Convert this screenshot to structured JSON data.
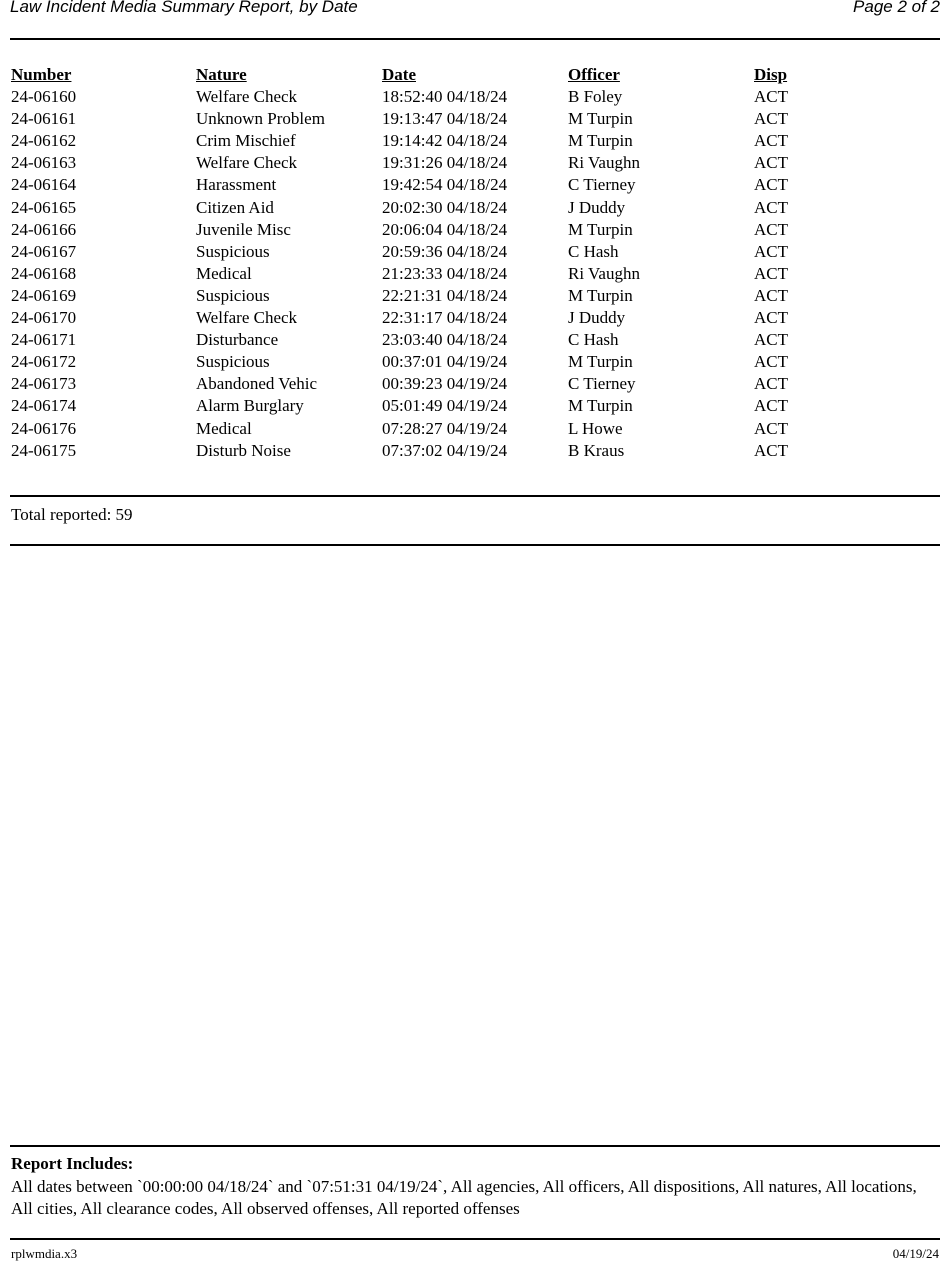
{
  "header": {
    "title": "Law Incident Media Summary Report, by Date",
    "page": "Page 2 of 2"
  },
  "table": {
    "columns": [
      "Number",
      "Nature",
      "Date",
      "Officer",
      "Disp"
    ],
    "rows": [
      [
        "24-06160",
        "Welfare Check",
        "18:52:40 04/18/24",
        "B Foley",
        "ACT"
      ],
      [
        "24-06161",
        "Unknown Problem",
        "19:13:47 04/18/24",
        "M Turpin",
        "ACT"
      ],
      [
        "24-06162",
        "Crim Mischief",
        "19:14:42 04/18/24",
        "M Turpin",
        "ACT"
      ],
      [
        "24-06163",
        "Welfare Check",
        "19:31:26 04/18/24",
        "Ri Vaughn",
        "ACT"
      ],
      [
        "24-06164",
        "Harassment",
        "19:42:54 04/18/24",
        "C Tierney",
        "ACT"
      ],
      [
        "24-06165",
        "Citizen Aid",
        "20:02:30 04/18/24",
        "J Duddy",
        "ACT"
      ],
      [
        "24-06166",
        "Juvenile Misc",
        "20:06:04 04/18/24",
        "M Turpin",
        "ACT"
      ],
      [
        "24-06167",
        "Suspicious",
        "20:59:36 04/18/24",
        "C Hash",
        "ACT"
      ],
      [
        "24-06168",
        "Medical",
        "21:23:33 04/18/24",
        "Ri Vaughn",
        "ACT"
      ],
      [
        "24-06169",
        "Suspicious",
        "22:21:31 04/18/24",
        "M Turpin",
        "ACT"
      ],
      [
        "24-06170",
        "Welfare Check",
        "22:31:17 04/18/24",
        "J Duddy",
        "ACT"
      ],
      [
        "24-06171",
        "Disturbance",
        "23:03:40 04/18/24",
        "C Hash",
        "ACT"
      ],
      [
        "24-06172",
        "Suspicious",
        "00:37:01 04/19/24",
        "M Turpin",
        "ACT"
      ],
      [
        "24-06173",
        "Abandoned Vehic",
        "00:39:23 04/19/24",
        "C Tierney",
        "ACT"
      ],
      [
        "24-06174",
        "Alarm Burglary",
        "05:01:49 04/19/24",
        "M Turpin",
        "ACT"
      ],
      [
        "24-06176",
        "Medical",
        "07:28:27 04/19/24",
        "L Howe",
        "ACT"
      ],
      [
        "24-06175",
        "Disturb Noise",
        "07:37:02 04/19/24",
        "B Kraus",
        "ACT"
      ]
    ]
  },
  "total": "Total reported: 59",
  "includes": {
    "heading": "Report Includes:",
    "text": "All dates between `00:00:00 04/18/24` and `07:51:31 04/19/24`, All agencies, All officers, All dispositions, All natures, All locations, All cities, All clearance codes, All observed offenses, All reported offenses"
  },
  "footer": {
    "program": "rplwmdia.x3",
    "date": "04/19/24"
  }
}
